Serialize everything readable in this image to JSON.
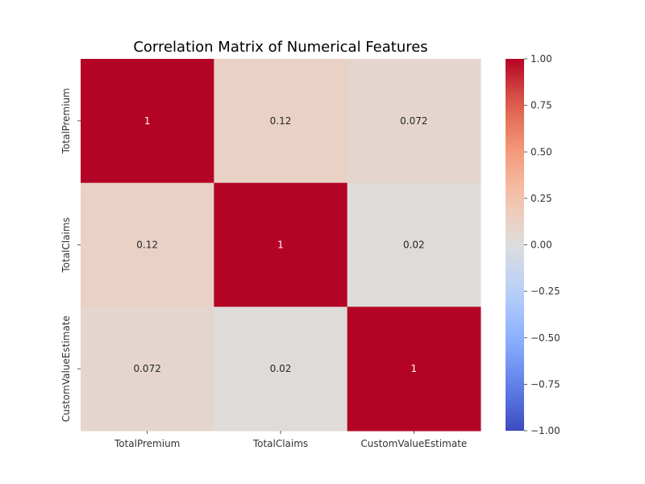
{
  "chart_data": {
    "type": "heatmap",
    "title": "Correlation Matrix of Numerical Features",
    "xlabel": "",
    "ylabel": "",
    "x_categories": [
      "TotalPremium",
      "TotalClaims",
      "CustomValueEstimate"
    ],
    "y_categories": [
      "TotalPremium",
      "TotalClaims",
      "CustomValueEstimate"
    ],
    "values": [
      [
        1.0,
        0.12,
        0.072
      ],
      [
        0.12,
        1.0,
        0.02
      ],
      [
        0.072,
        0.02,
        1.0
      ]
    ],
    "annotations": [
      [
        "1",
        "0.12",
        "0.072"
      ],
      [
        "0.12",
        "1",
        "0.02"
      ],
      [
        "0.072",
        "0.02",
        "1"
      ]
    ],
    "colormap": "coolwarm",
    "vmin": -1.0,
    "vmax": 1.0,
    "colorbar_ticks": [
      "1.00",
      "0.75",
      "0.50",
      "0.25",
      "0.00",
      "−0.25",
      "−0.50",
      "−0.75",
      "−1.00"
    ],
    "colorbar_tick_values": [
      1.0,
      0.75,
      0.5,
      0.25,
      0.0,
      -0.25,
      -0.5,
      -0.75,
      -1.0
    ],
    "colors": {
      "low": "#3b4cc0",
      "mid": "#dddddd",
      "high": "#b40426"
    }
  }
}
